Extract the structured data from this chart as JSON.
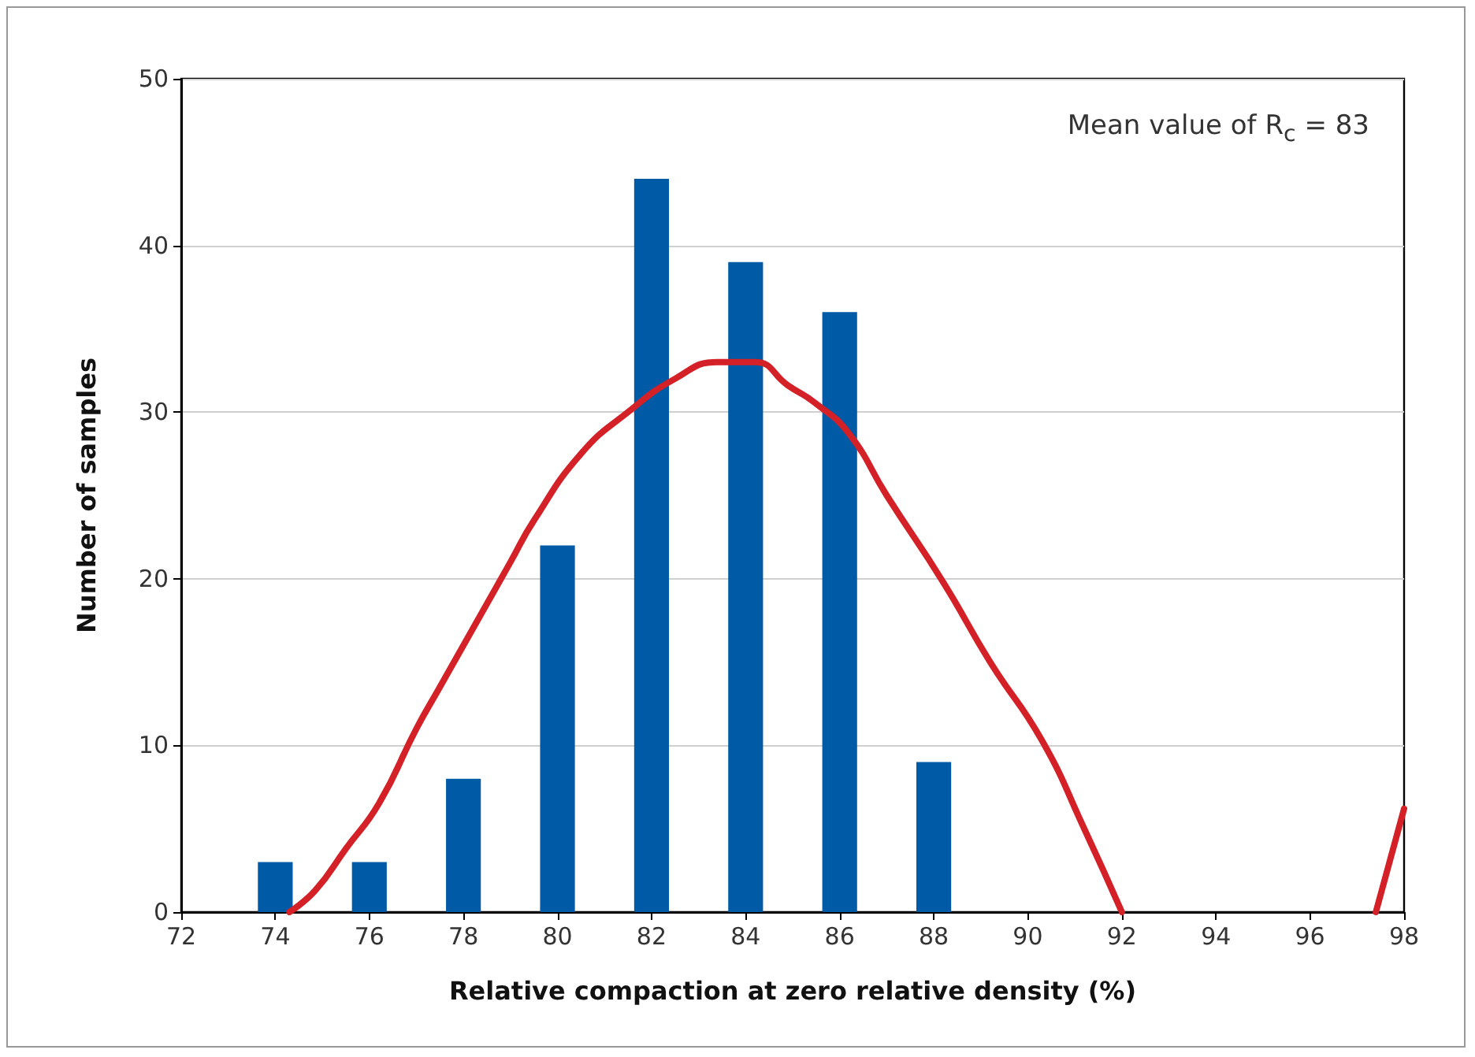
{
  "chart_data": {
    "type": "bar",
    "xlabel": "Relative compaction at zero relative density (%)",
    "ylabel": "Number of samples",
    "annotations": [
      "Mean value of R$_{c}$ = 83"
    ],
    "xlim": [
      72,
      98
    ],
    "xticks": [
      72,
      74,
      76,
      78,
      80,
      82,
      84,
      86,
      88,
      90,
      92,
      94,
      96,
      98
    ],
    "ylim": [
      0,
      50
    ],
    "yticks": [
      0,
      10,
      20,
      30,
      40,
      50
    ],
    "grid": "y",
    "series": [
      {
        "color": "#005aa5",
        "x": [
          74,
          76,
          78,
          80,
          82,
          84,
          86,
          88
        ],
        "values": [
          3,
          3,
          8,
          22,
          44,
          39,
          36,
          9
        ]
      },
      {
        "type": "line",
        "color": "#d42027",
        "marker": "none",
        "line_style": "solid",
        "x": [
          74.3,
          74.85,
          75.5,
          76.2,
          77,
          77.5,
          78.2,
          79,
          79.5,
          80.5,
          81.5,
          82.5,
          83.4,
          84.2,
          84.9,
          85.5,
          86.2,
          87,
          88.2,
          89.2,
          90.3,
          91.2,
          92,
          95,
          97.4,
          98
        ],
        "values": [
          0,
          1.3,
          3.8,
          6.5,
          11,
          13.5,
          17,
          21,
          23.5,
          27.5,
          30,
          32,
          33,
          33,
          31.6,
          30.5,
          28.7,
          25,
          19.8,
          15,
          10.3,
          5,
          0,
          null,
          0,
          6.2
        ]
      }
    ]
  }
}
